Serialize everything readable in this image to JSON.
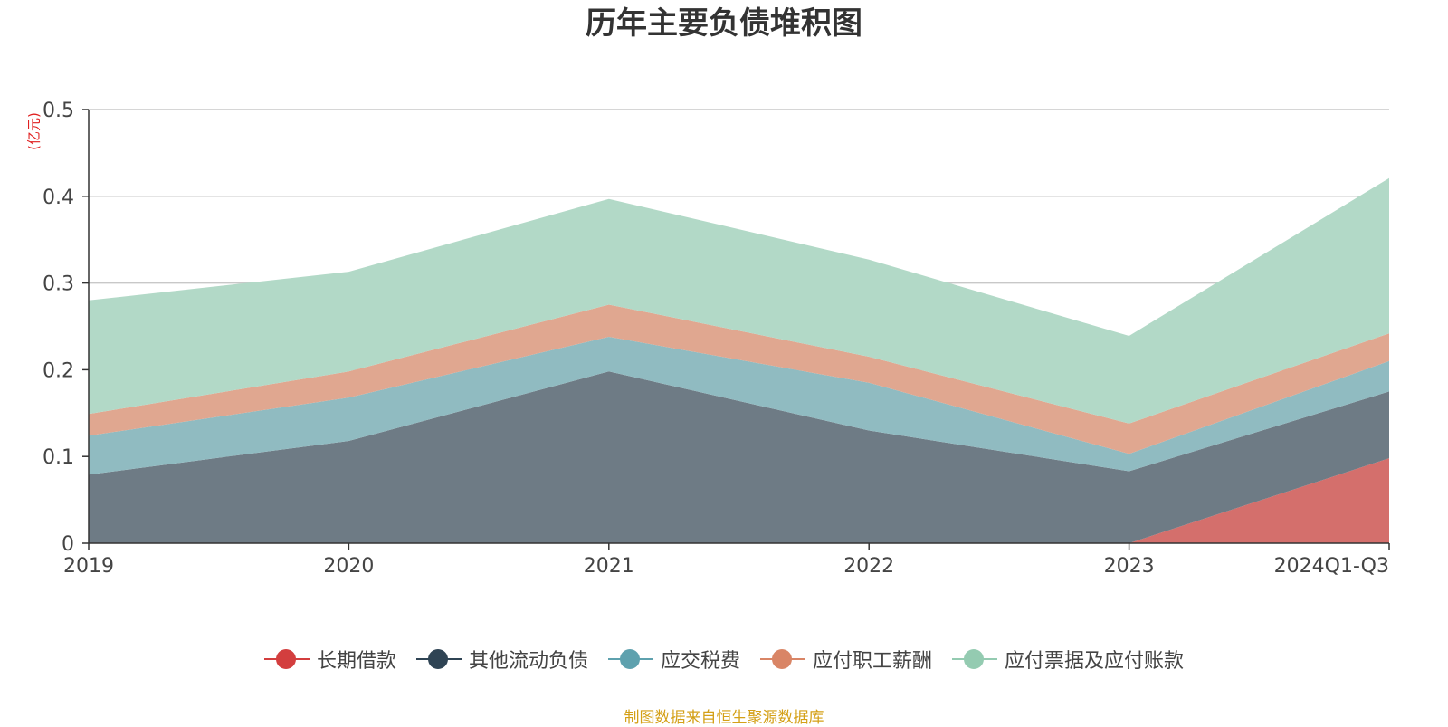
{
  "chart_data": {
    "type": "area",
    "stacked": true,
    "title": "历年主要负债堆积图",
    "unit_label": "(亿元)",
    "categories": [
      "2019",
      "2020",
      "2021",
      "2022",
      "2023",
      "2024Q1-Q3"
    ],
    "ylim": [
      0,
      0.5
    ],
    "yticks": [
      "0",
      "0.1",
      "0.2",
      "0.3",
      "0.4",
      "0.5"
    ],
    "grid": true,
    "legend_position": "bottom",
    "series": [
      {
        "name": "长期借款",
        "color": "#d33e3e",
        "fill": "#d46f6c",
        "values": [
          0,
          0,
          0,
          0,
          0,
          0.098
        ]
      },
      {
        "name": "其他流动负债",
        "color": "#2f4454",
        "fill": "#6e7b85",
        "values": [
          0.079,
          0.118,
          0.198,
          0.13,
          0.083,
          0.077
        ]
      },
      {
        "name": "应交税费",
        "color": "#5ea1ae",
        "fill": "#90bbc1",
        "values": [
          0.045,
          0.05,
          0.04,
          0.055,
          0.02,
          0.035
        ]
      },
      {
        "name": "应付职工薪酬",
        "color": "#d98566",
        "fill": "#e0a790",
        "values": [
          0.025,
          0.03,
          0.037,
          0.03,
          0.035,
          0.032
        ]
      },
      {
        "name": "应付票据及应付账款",
        "color": "#94cbb1",
        "fill": "#b2d9c7",
        "values": [
          0.131,
          0.115,
          0.122,
          0.112,
          0.101,
          0.179
        ]
      }
    ]
  },
  "footer": {
    "source": "制图数据来自恒生聚源数据库"
  }
}
